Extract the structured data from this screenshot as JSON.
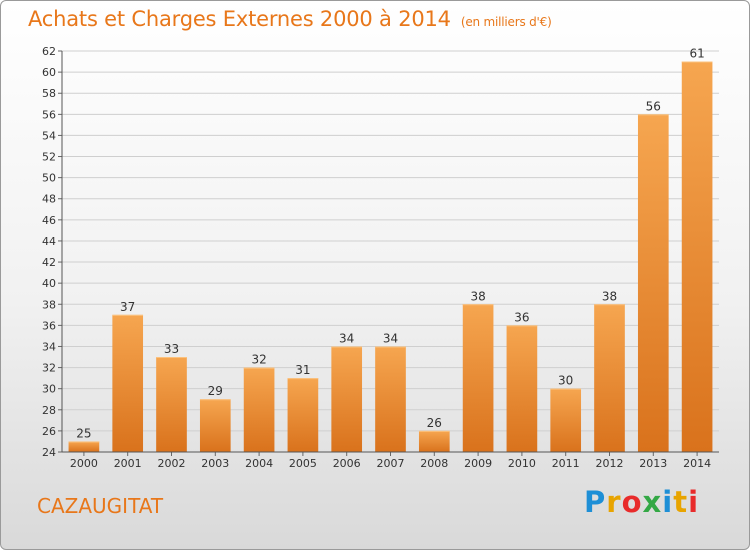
{
  "header": {
    "title": "Achats et Charges Externes 2000 à 2014",
    "subtitle": "(en milliers d'€)"
  },
  "footer": {
    "town": "CAZAUGITAT",
    "brand": "Proxiti",
    "brand_colors": [
      "#1e8fd6",
      "#e8a400",
      "#e82b2b",
      "#33a845",
      "#1e8fd6",
      "#e8a400",
      "#e82b2b"
    ]
  },
  "chart_data": {
    "type": "bar",
    "title": "Achats et Charges Externes 2000 à 2014",
    "subtitle": "(en milliers d'€)",
    "categories": [
      "2000",
      "2001",
      "2002",
      "2003",
      "2004",
      "2005",
      "2006",
      "2007",
      "2008",
      "2009",
      "2010",
      "2011",
      "2012",
      "2013",
      "2014"
    ],
    "values": [
      25,
      37,
      33,
      29,
      32,
      31,
      34,
      34,
      26,
      38,
      36,
      30,
      38,
      56,
      61
    ],
    "ylim": [
      24,
      62
    ],
    "ytick_step": 2,
    "grid": true,
    "bar_color_top": "#f6a650",
    "bar_color_bottom": "#d9721c"
  }
}
